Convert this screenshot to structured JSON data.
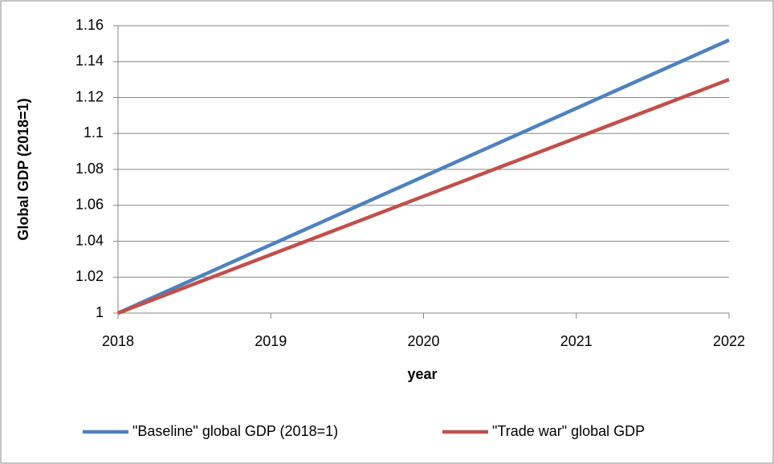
{
  "chart_data": {
    "type": "line",
    "x_label": "year",
    "y_label": "Global GDP (2018=1)",
    "x": [
      2018,
      2019,
      2020,
      2021,
      2022
    ],
    "xlim": [
      2018,
      2022
    ],
    "xticks": [
      2018,
      2019,
      2020,
      2021,
      2022
    ],
    "ylim": [
      1,
      1.16
    ],
    "yticks": [
      1,
      1.02,
      1.04,
      1.06,
      1.08,
      1.1,
      1.12,
      1.14,
      1.16
    ],
    "grid": true,
    "legend": "bottom",
    "series": [
      {
        "name": "\"Baseline\" global GDP (2018=1)",
        "color": "#4f81bd",
        "values": [
          1,
          1.038,
          1.076,
          1.114,
          1.152
        ]
      },
      {
        "name": "\"Trade war\" global GDP",
        "color": "#c0504d",
        "values": [
          1,
          1.0325,
          1.065,
          1.0975,
          1.13
        ]
      }
    ]
  }
}
